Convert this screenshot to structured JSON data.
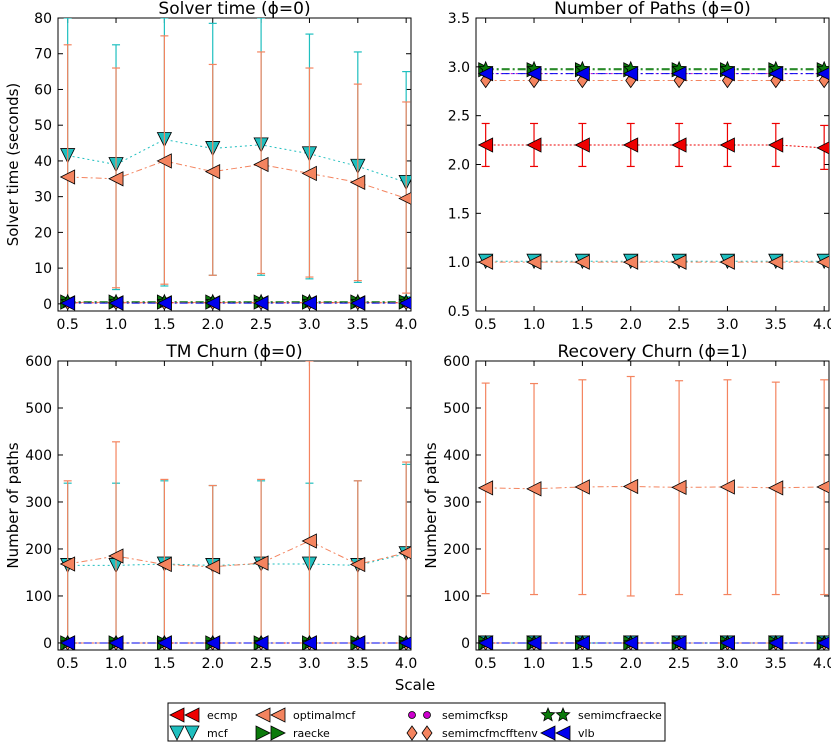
{
  "figure": {
    "shared_xlabel": "Scale"
  },
  "legend": [
    {
      "name": "ecmp",
      "marker": "triangle-left",
      "color": "#ee0000"
    },
    {
      "name": "mcf",
      "marker": "triangle-down",
      "color": "#1fbfbf"
    },
    {
      "name": "optimalmcf",
      "marker": "triangle-left",
      "color": "#f4845f"
    },
    {
      "name": "raecke",
      "marker": "triangle-right",
      "color": "#0b7a0b"
    },
    {
      "name": "semimcfksp",
      "marker": "dot",
      "color": "#cc00cc"
    },
    {
      "name": "semimcfmcfftenv",
      "marker": "diamond",
      "color": "#f4845f"
    },
    {
      "name": "semimcfraecke",
      "marker": "star",
      "color": "#0b7a0b"
    },
    {
      "name": "vlb",
      "marker": "triangle-left",
      "color": "#0000ee"
    }
  ],
  "chart_data": [
    {
      "type": "line",
      "title": "Solver time (ϕ=0)",
      "ylabel": "Solver time (seconds)",
      "x": [
        0.5,
        1.0,
        1.5,
        2.0,
        2.5,
        3.0,
        3.5,
        4.0
      ],
      "xticks": [
        "0.5",
        "1.0",
        "1.5",
        "2.0",
        "2.5",
        "3.0",
        "3.5",
        "4.0"
      ],
      "xlim": [
        0.4,
        4.05
      ],
      "ylim": [
        -2,
        80
      ],
      "yticks": [
        "0",
        "10",
        "20",
        "30",
        "40",
        "50",
        "60",
        "70",
        "80"
      ],
      "series": [
        {
          "name": "mcf",
          "values": [
            41.5,
            39,
            46,
            43.5,
            44.5,
            42,
            38.5,
            34
          ],
          "err_low": [
            0,
            4,
            5,
            8,
            8,
            7,
            6,
            2
          ],
          "err_high": [
            80,
            72.5,
            80,
            78.5,
            80,
            75.5,
            70.5,
            65
          ]
        },
        {
          "name": "optimalmcf",
          "values": [
            35.5,
            35,
            40,
            37,
            39,
            36.5,
            34,
            29.5
          ],
          "err_low": [
            0,
            4.5,
            5.5,
            8,
            8.5,
            7.5,
            6.5,
            3
          ],
          "err_high": [
            72.5,
            66,
            75,
            67,
            70.5,
            66,
            61.5,
            56.5
          ]
        },
        {
          "name": "ecmp",
          "values": [
            0.3,
            0.3,
            0.3,
            0.3,
            0.3,
            0.3,
            0.3,
            0.3
          ]
        },
        {
          "name": "raecke",
          "values": [
            0.5,
            0.5,
            0.5,
            0.5,
            0.5,
            0.5,
            0.5,
            0.5
          ]
        },
        {
          "name": "semimcfmcfftenv",
          "values": [
            0.4,
            0.4,
            0.4,
            0.4,
            0.4,
            0.4,
            0.4,
            0.4
          ]
        },
        {
          "name": "semimcfraecke",
          "values": [
            0.6,
            0.6,
            0.6,
            0.6,
            0.6,
            0.6,
            0.6,
            0.6
          ]
        },
        {
          "name": "vlb",
          "values": [
            0.2,
            0.2,
            0.2,
            0.2,
            0.2,
            0.2,
            0.2,
            0.2
          ]
        }
      ]
    },
    {
      "type": "line",
      "title": "Number of Paths (ϕ=0)",
      "ylabel": "",
      "x": [
        0.5,
        1.0,
        1.5,
        2.0,
        2.5,
        3.0,
        3.5,
        4.0
      ],
      "xticks": [
        "0.5",
        "1.0",
        "1.5",
        "2.0",
        "2.5",
        "3.0",
        "3.5",
        "4.0"
      ],
      "xlim": [
        0.4,
        4.05
      ],
      "ylim": [
        0.5,
        3.5
      ],
      "yticks": [
        "0.5",
        "1.0",
        "1.5",
        "2.0",
        "2.5",
        "3.0",
        "3.5"
      ],
      "series": [
        {
          "name": "ecmp",
          "values": [
            2.2,
            2.2,
            2.2,
            2.2,
            2.2,
            2.2,
            2.2,
            2.17
          ],
          "err_low": [
            1.98,
            1.98,
            1.98,
            1.98,
            1.98,
            1.98,
            1.98,
            1.95
          ],
          "err_high": [
            2.42,
            2.42,
            2.42,
            2.42,
            2.42,
            2.42,
            2.42,
            2.4
          ]
        },
        {
          "name": "mcf",
          "values": [
            1.01,
            1.01,
            1.01,
            1.01,
            1.01,
            1.01,
            1.01,
            1.01
          ]
        },
        {
          "name": "optimalmcf",
          "values": [
            1.0,
            1.0,
            1.0,
            1.0,
            1.0,
            1.0,
            1.0,
            1.0
          ]
        },
        {
          "name": "semimcfmcfftenv",
          "values": [
            2.86,
            2.86,
            2.86,
            2.86,
            2.86,
            2.86,
            2.86,
            2.86
          ]
        },
        {
          "name": "semimcfksp",
          "values": [
            2.93,
            2.93,
            2.93,
            2.93,
            2.93,
            2.93,
            2.93,
            2.93
          ]
        },
        {
          "name": "raecke",
          "values": [
            2.97,
            2.97,
            2.97,
            2.97,
            2.97,
            2.97,
            2.97,
            2.97
          ]
        },
        {
          "name": "semimcfraecke",
          "values": [
            2.98,
            2.98,
            2.98,
            2.98,
            2.98,
            2.98,
            2.98,
            2.98
          ]
        },
        {
          "name": "vlb",
          "values": [
            2.93,
            2.93,
            2.93,
            2.93,
            2.93,
            2.93,
            2.93,
            2.93
          ]
        }
      ]
    },
    {
      "type": "line",
      "title": "TM Churn (ϕ=0)",
      "ylabel": "Number of paths",
      "x": [
        0.5,
        1.0,
        1.5,
        2.0,
        2.5,
        3.0,
        3.5,
        4.0
      ],
      "xticks": [
        "0.5",
        "1.0",
        "1.5",
        "2.0",
        "2.5",
        "3.0",
        "3.5",
        "4.0"
      ],
      "xlim": [
        0.4,
        4.05
      ],
      "ylim": [
        -15,
        600
      ],
      "yticks": [
        "0",
        "100",
        "200",
        "300",
        "400",
        "500",
        "600"
      ],
      "series": [
        {
          "name": "mcf",
          "values": [
            165,
            165,
            168,
            165,
            168,
            168,
            165,
            190
          ],
          "err_low": [
            0,
            0,
            0,
            0,
            0,
            0,
            0,
            0
          ],
          "err_high": [
            340,
            340,
            345,
            335,
            345,
            340,
            345,
            380
          ]
        },
        {
          "name": "optimalmcf",
          "values": [
            168,
            185,
            167,
            162,
            170,
            217,
            167,
            192
          ],
          "err_low": [
            0,
            0,
            0,
            0,
            0,
            0,
            0,
            0
          ],
          "err_high": [
            345,
            428,
            348,
            335,
            348,
            600,
            345,
            385
          ]
        },
        {
          "name": "ecmp",
          "values": [
            0,
            0,
            0,
            0,
            0,
            0,
            0,
            0
          ]
        },
        {
          "name": "raecke",
          "values": [
            0,
            0,
            0,
            0,
            0,
            0,
            0,
            0
          ]
        },
        {
          "name": "semimcfmcfftenv",
          "values": [
            0,
            0,
            0,
            0,
            0,
            0,
            0,
            0
          ]
        },
        {
          "name": "semimcfraecke",
          "values": [
            0,
            0,
            0,
            0,
            0,
            0,
            0,
            0
          ]
        },
        {
          "name": "vlb",
          "values": [
            0,
            0,
            0,
            0,
            0,
            0,
            0,
            0
          ]
        }
      ]
    },
    {
      "type": "line",
      "title": "Recovery Churn (ϕ=1)",
      "ylabel": "Number of paths",
      "x": [
        0.5,
        1.0,
        1.5,
        2.0,
        2.5,
        3.0,
        3.5,
        4.0
      ],
      "xticks": [
        "0.5",
        "1.0",
        "1.5",
        "2.0",
        "2.5",
        "3.0",
        "3.5",
        "4.0"
      ],
      "xlim": [
        0.4,
        4.05
      ],
      "ylim": [
        -15,
        600
      ],
      "yticks": [
        "0",
        "100",
        "200",
        "300",
        "400",
        "500",
        "600"
      ],
      "series": [
        {
          "name": "optimalmcf",
          "values": [
            330,
            328,
            332,
            333,
            331,
            332,
            330,
            332
          ],
          "err_low": [
            105,
            103,
            103,
            100,
            103,
            103,
            103,
            103
          ],
          "err_high": [
            553,
            552,
            560,
            567,
            558,
            560,
            555,
            560
          ]
        },
        {
          "name": "ecmp",
          "values": [
            0,
            0,
            0,
            0,
            0,
            0,
            0,
            0
          ]
        },
        {
          "name": "mcf",
          "values": [
            0,
            0,
            0,
            0,
            0,
            0,
            0,
            0
          ]
        },
        {
          "name": "raecke",
          "values": [
            0,
            0,
            0,
            0,
            0,
            0,
            0,
            0
          ]
        },
        {
          "name": "semimcfmcfftenv",
          "values": [
            0,
            0,
            0,
            0,
            0,
            0,
            0,
            0
          ]
        },
        {
          "name": "semimcfraecke",
          "values": [
            0,
            0,
            0,
            0,
            0,
            0,
            0,
            0
          ]
        },
        {
          "name": "vlb",
          "values": [
            0,
            0,
            0,
            0,
            0,
            0,
            0,
            0
          ]
        }
      ]
    }
  ]
}
